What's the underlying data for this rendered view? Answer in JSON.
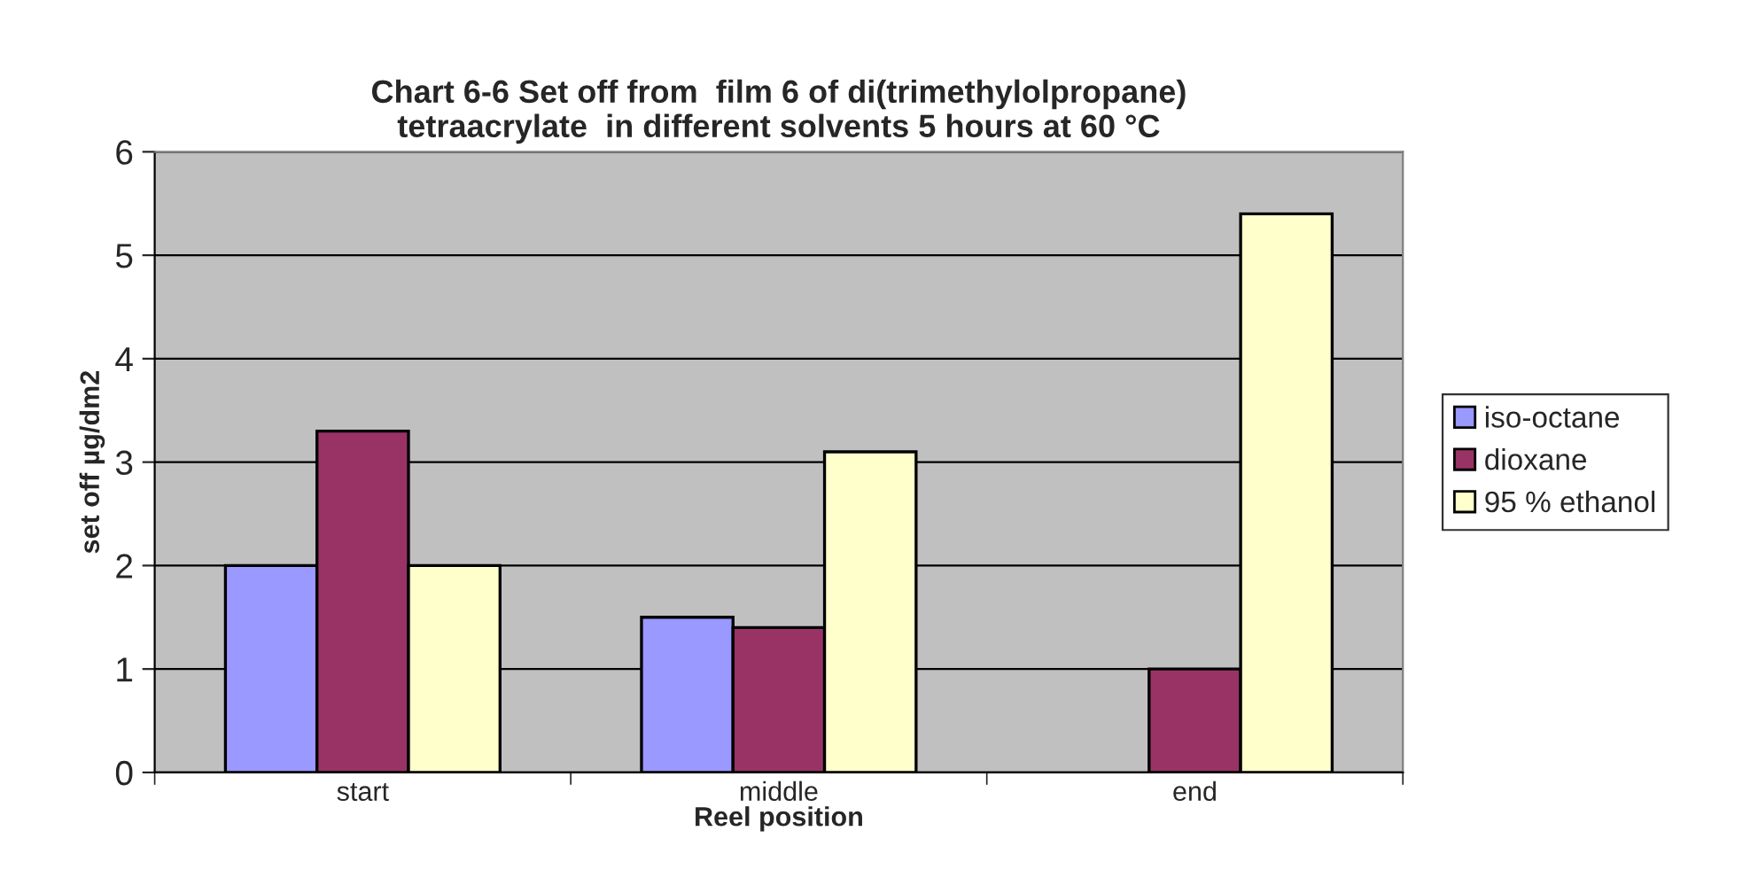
{
  "chart_data": {
    "type": "bar",
    "title": "Chart 6-6 Set off from  film 6 of di(trimethylolpropane)\ntetraacrylate  in different solvents 5 hours at 60 °C",
    "xlabel": "Reel position",
    "ylabel": "set off µg/dm2",
    "categories": [
      "start",
      "middle",
      "end"
    ],
    "series": [
      {
        "name": "iso-octane",
        "color": "#9999ff",
        "values": [
          2.0,
          1.5,
          null
        ]
      },
      {
        "name": "dioxane",
        "color": "#993366",
        "values": [
          3.3,
          1.4,
          1.0
        ]
      },
      {
        "name": "95 % ethanol",
        "color": "#ffffcc",
        "values": [
          2.0,
          3.1,
          5.4
        ]
      }
    ],
    "ylim": [
      0,
      6
    ],
    "yticks": [
      0,
      1,
      2,
      3,
      4,
      5,
      6
    ],
    "grid": "y",
    "legend": "right"
  }
}
